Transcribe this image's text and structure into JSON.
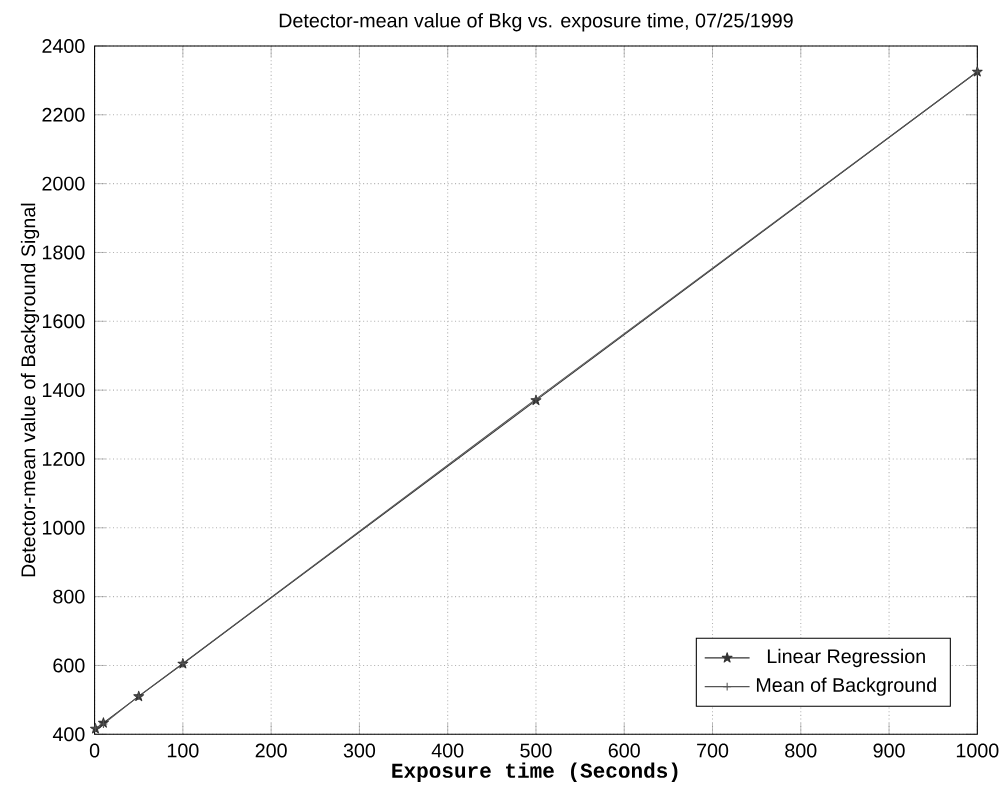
{
  "chart_data": {
    "type": "line",
    "title": "Detector-mean value of Bkg vs. exposure time, 07/25/1999",
    "xlabel": "Exposure time (Seconds)",
    "ylabel": "Detector-mean value of Background Signal",
    "series": [
      {
        "name": "Linear Regression",
        "color": "#333333",
        "marker": "star",
        "x": [
          1,
          10,
          50,
          100,
          500,
          1000
        ],
        "values": [
          416,
          433,
          510,
          605,
          1370,
          2325
        ]
      },
      {
        "name": "Mean of Background",
        "color": "#555555",
        "marker": "cross",
        "x": [
          1,
          10,
          50,
          100,
          500,
          1000
        ],
        "values": [
          418,
          430,
          511,
          606,
          1374,
          2325
        ]
      }
    ],
    "xlim": [
      0,
      1000
    ],
    "ylim": [
      400,
      2400
    ],
    "xticks": [
      0,
      100,
      200,
      300,
      400,
      500,
      600,
      700,
      800,
      900,
      1000
    ],
    "yticks": [
      400,
      600,
      800,
      1000,
      1200,
      1400,
      1600,
      1800,
      2000,
      2200,
      2400
    ],
    "grid": true,
    "legend": "bottom right",
    "line_style": "solid"
  }
}
